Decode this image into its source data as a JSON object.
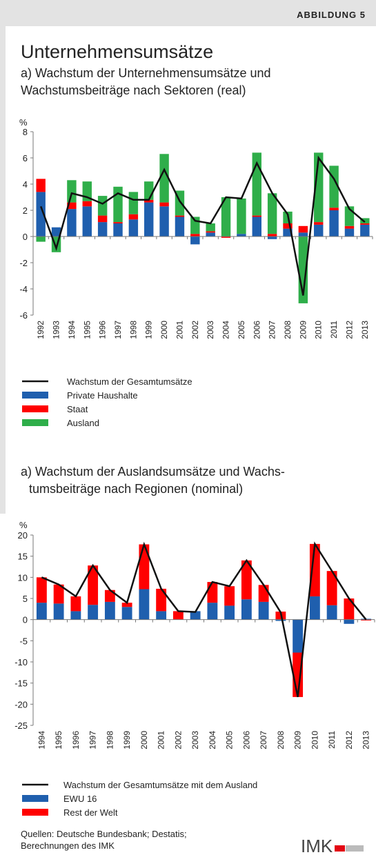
{
  "header": {
    "label": "ABBILDUNG 5",
    "title": "Unternehmensumsätze"
  },
  "chart_data": [
    {
      "type": "bar",
      "stacked": true,
      "grid": false,
      "subtitle": [
        "a) Wachstum der Unternehmensumsätze und",
        "Wachstumsbeiträge nach Sektoren (real)"
      ],
      "ylabel": "%",
      "categories": [
        "1992",
        "1993",
        "1994",
        "1995",
        "1996",
        "1997",
        "1998",
        "1999",
        "2000",
        "2001",
        "2002",
        "2003",
        "2004",
        "2005",
        "2006",
        "2007",
        "2008",
        "2009",
        "2010",
        "2011",
        "2012",
        "2013"
      ],
      "ylim": [
        -6,
        8
      ],
      "yticks": [
        -6,
        -4,
        -2,
        0,
        2,
        4,
        6,
        8
      ],
      "series": [
        {
          "name": "Wachstum der Gesamtumsätze",
          "type": "line",
          "color": "#111111",
          "values": [
            2.3,
            -0.9,
            3.3,
            3.0,
            2.5,
            3.3,
            2.8,
            2.8,
            5.1,
            2.7,
            1.2,
            1.0,
            3.0,
            2.9,
            5.6,
            3.3,
            1.7,
            -4.5,
            6.0,
            4.4,
            2.1,
            1.1
          ]
        },
        {
          "name": "Private Haushalte",
          "type": "bar",
          "color": "#1f5fae",
          "values": [
            3.4,
            0.7,
            2.1,
            2.3,
            1.1,
            1.0,
            1.3,
            2.6,
            2.3,
            1.5,
            -0.6,
            0.3,
            0.0,
            0.2,
            1.5,
            -0.2,
            0.6,
            0.3,
            0.9,
            2.0,
            0.6,
            0.9
          ]
        },
        {
          "name": "Staat",
          "type": "bar",
          "color": "#ff0000",
          "values": [
            1.0,
            0.0,
            0.5,
            0.4,
            0.5,
            0.1,
            0.4,
            0.2,
            0.3,
            0.1,
            0.2,
            0.1,
            -0.1,
            0.0,
            0.1,
            0.2,
            0.4,
            0.5,
            0.2,
            0.2,
            0.2,
            0.1
          ]
        },
        {
          "name": "Ausland",
          "type": "bar",
          "color": "#2fae4a",
          "values": [
            -0.4,
            -1.2,
            1.7,
            1.5,
            1.5,
            2.7,
            1.7,
            1.4,
            3.7,
            1.9,
            1.3,
            0.6,
            3.0,
            2.7,
            4.8,
            3.1,
            0.9,
            -5.1,
            5.3,
            3.2,
            1.5,
            0.4
          ]
        }
      ]
    },
    {
      "type": "bar",
      "stacked": true,
      "grid": false,
      "subtitle": [
        "a) Wachstum der Auslandsumsätze und Wachs-",
        "tumsbeiträge nach Regionen (nominal)"
      ],
      "ylabel": "%",
      "categories": [
        "1994",
        "1995",
        "1996",
        "1997",
        "1998",
        "1999",
        "2000",
        "2001",
        "2002",
        "2003",
        "2004",
        "2005",
        "2006",
        "2007",
        "2008",
        "2009",
        "2010",
        "2011",
        "2012",
        "2013"
      ],
      "ylim": [
        -25,
        20
      ],
      "yticks": [
        -25,
        -20,
        -15,
        -10,
        -5,
        0,
        5,
        10,
        15,
        20
      ],
      "series": [
        {
          "name": "Wachstum der Gesamtumsätze mit dem Ausland",
          "type": "line",
          "color": "#111111",
          "values": [
            10,
            8.3,
            5.5,
            12.8,
            7,
            4,
            17.8,
            7.3,
            2,
            1.8,
            8.9,
            7.9,
            14,
            8.2,
            1.7,
            -18.3,
            17.9,
            11.5,
            5,
            0
          ]
        },
        {
          "name": "EWU 16",
          "type": "bar",
          "color": "#1f5fae",
          "values": [
            4,
            3.8,
            2,
            3.5,
            4.2,
            3,
            7.2,
            2,
            0,
            2,
            4,
            3.3,
            4.8,
            4.2,
            -0.3,
            -7.8,
            5.5,
            3.4,
            -1,
            0.2
          ]
        },
        {
          "name": "Rest der Welt",
          "type": "bar",
          "color": "#ff0000",
          "values": [
            6,
            4.5,
            3.5,
            9.3,
            2.8,
            1,
            10.6,
            5.3,
            2,
            0,
            4.9,
            4.6,
            9.2,
            4,
            1.9,
            -10.5,
            12.4,
            8.1,
            5,
            -0.2
          ]
        }
      ]
    }
  ],
  "footer": {
    "source": [
      "Quellen: Deutsche Bundesbank; Destatis;",
      "Berechnungen des IMK"
    ],
    "logo": "IMK"
  }
}
